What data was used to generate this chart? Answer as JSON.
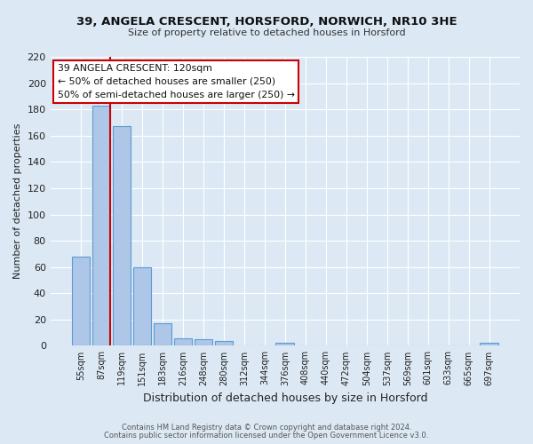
{
  "title": "39, ANGELA CRESCENT, HORSFORD, NORWICH, NR10 3HE",
  "subtitle": "Size of property relative to detached houses in Horsford",
  "xlabel": "Distribution of detached houses by size in Horsford",
  "ylabel": "Number of detached properties",
  "bar_labels": [
    "55sqm",
    "87sqm",
    "119sqm",
    "151sqm",
    "183sqm",
    "216sqm",
    "248sqm",
    "280sqm",
    "312sqm",
    "344sqm",
    "376sqm",
    "408sqm",
    "440sqm",
    "472sqm",
    "504sqm",
    "537sqm",
    "569sqm",
    "601sqm",
    "633sqm",
    "665sqm",
    "697sqm"
  ],
  "bar_values": [
    68,
    183,
    167,
    60,
    17,
    6,
    5,
    4,
    0,
    0,
    2,
    0,
    0,
    0,
    0,
    0,
    0,
    0,
    0,
    0,
    2
  ],
  "bar_color": "#aec6e8",
  "bar_edge_color": "#5b9bd5",
  "background_color": "#dce9f5",
  "annotation_line1": "39 ANGELA CRESCENT: 120sqm",
  "annotation_line2": "← 50% of detached houses are smaller (250)",
  "annotation_line3": "50% of semi-detached houses are larger (250) →",
  "marker_line_color": "#cc0000",
  "red_line_x": 1.5,
  "ylim": [
    0,
    220
  ],
  "yticks": [
    0,
    20,
    40,
    60,
    80,
    100,
    120,
    140,
    160,
    180,
    200,
    220
  ],
  "footer_line1": "Contains HM Land Registry data © Crown copyright and database right 2024.",
  "footer_line2": "Contains public sector information licensed under the Open Government Licence v3.0.",
  "bar_width": 0.9
}
